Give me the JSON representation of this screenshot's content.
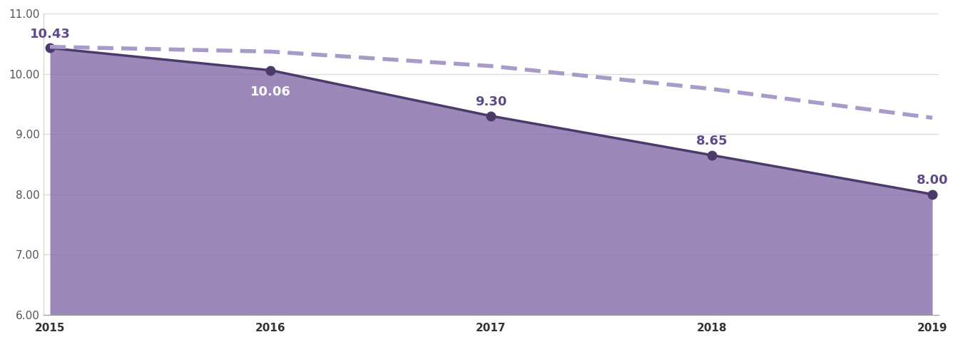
{
  "chart_data": {
    "type": "line",
    "categories": [
      "2015",
      "2016",
      "2017",
      "2018",
      "2019"
    ],
    "series": [
      {
        "type": "area",
        "color": "#4b3a6b",
        "marker": "o",
        "line_style": "solid",
        "data_labels": true,
        "values": [
          10.43,
          10.06,
          9.3,
          8.65,
          8.0
        ],
        "value_labels": [
          "10.43",
          "10.06",
          "9.30",
          "8.65",
          "8.00"
        ]
      },
      {
        "type": "line",
        "color": "#a99bc9",
        "line_style": "dashed",
        "values": [
          10.45,
          10.37,
          10.13,
          9.75,
          9.27
        ]
      }
    ],
    "ylim": [
      6,
      11
    ],
    "yticks": [
      {
        "value": 6,
        "label": "6.00"
      },
      {
        "value": 7,
        "label": "7.00"
      },
      {
        "value": 8,
        "label": "8.00"
      },
      {
        "value": 9,
        "label": "9.00"
      },
      {
        "value": 10,
        "label": "10.00"
      },
      {
        "value": 11,
        "label": "11.00"
      }
    ],
    "grid": true
  }
}
